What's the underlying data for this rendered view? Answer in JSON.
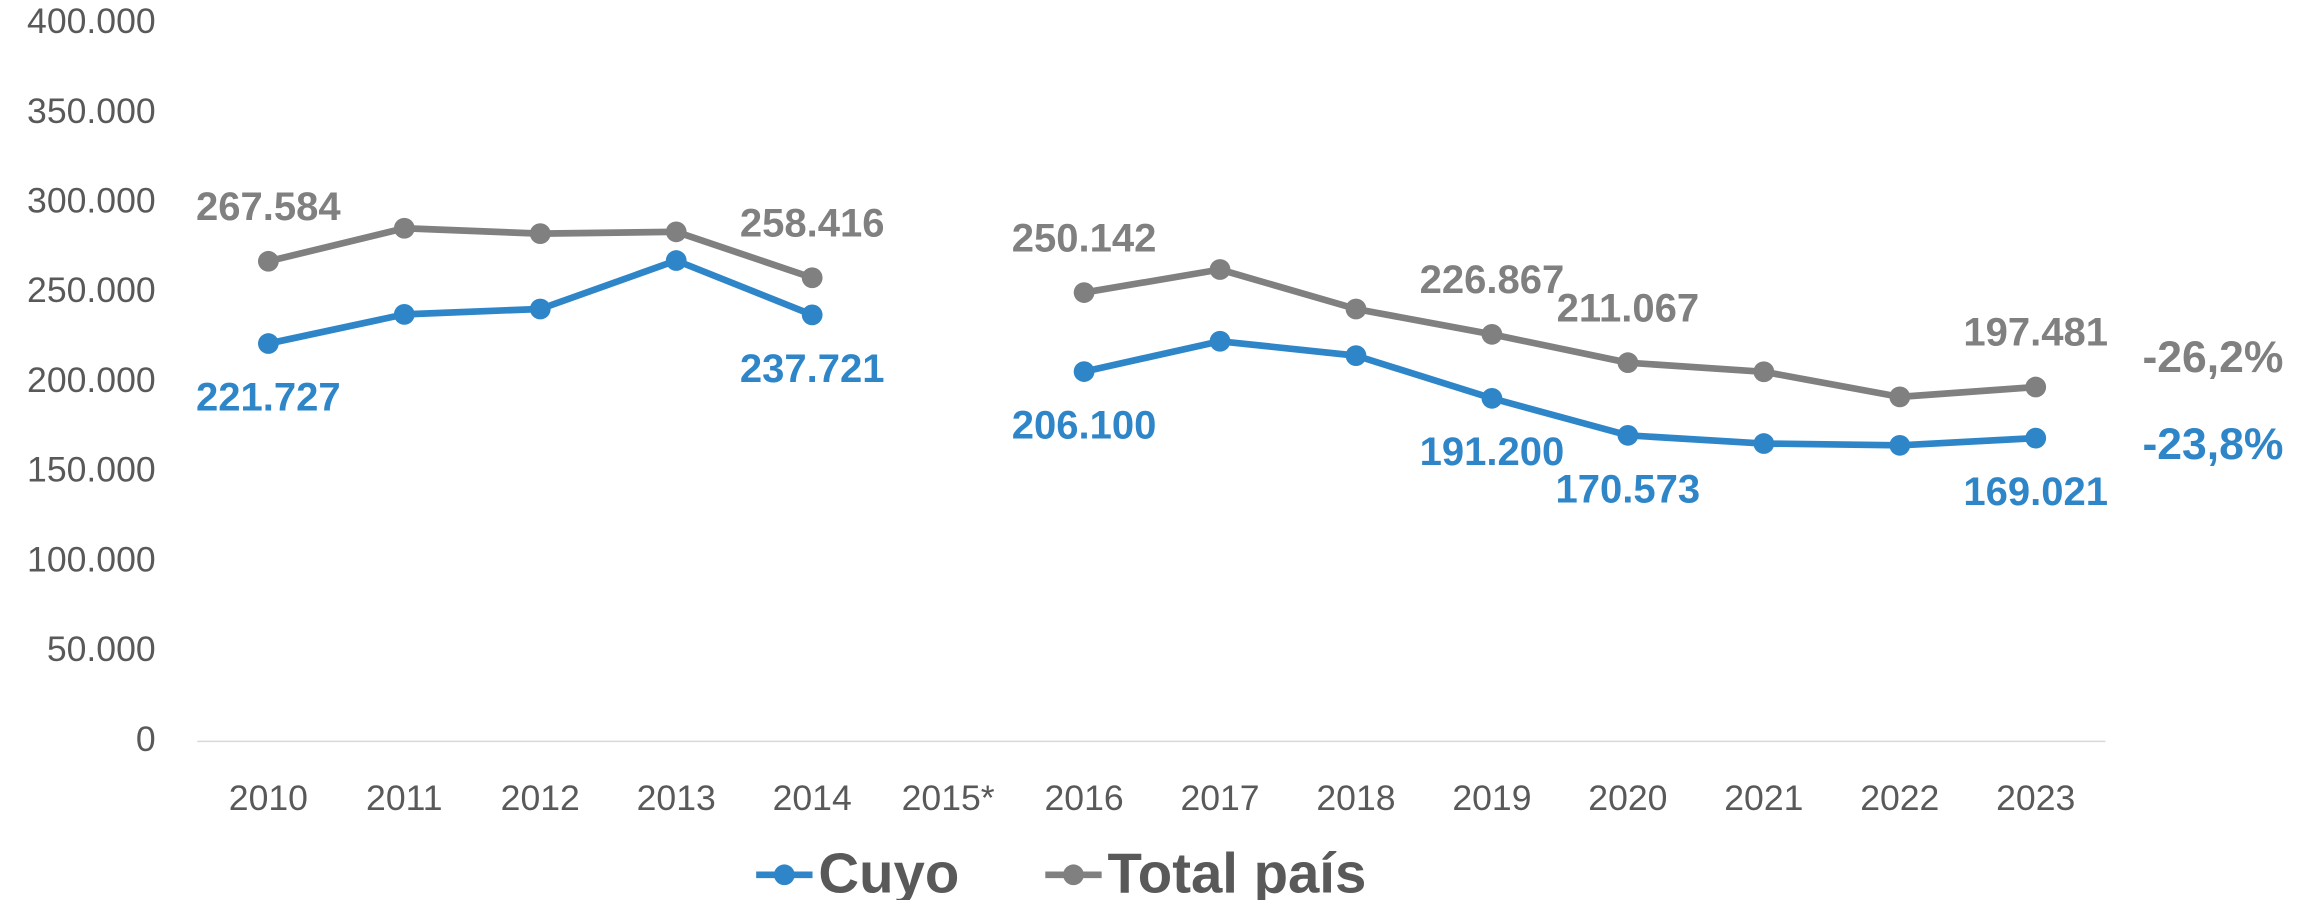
{
  "chart_data": {
    "type": "line",
    "categories": [
      "2010",
      "2011",
      "2012",
      "2013",
      "2014",
      "2015*",
      "2016",
      "2017",
      "2018",
      "2019",
      "2020",
      "2021",
      "2022",
      "2023"
    ],
    "ylim": [
      0,
      400000
    ],
    "yticks": [
      0,
      {
        "value": 50000,
        "label": "50.000"
      },
      {
        "value": 100000,
        "label": "100.000"
      },
      {
        "value": 150000,
        "label": "150.000"
      },
      {
        "value": 200000,
        "label": "200.000"
      },
      {
        "value": 250000,
        "label": "250.000"
      },
      {
        "value": 300000,
        "label": "300.000"
      },
      {
        "value": 350000,
        "label": "350.000"
      },
      {
        "value": 400000,
        "label": "400.000"
      }
    ],
    "grid": false,
    "legend": "bottom",
    "series": [
      {
        "name": "Cuyo",
        "color": "#2e86c8",
        "values": [
          221727,
          238000,
          241000,
          268000,
          237721,
          null,
          206100,
          223000,
          215000,
          191200,
          170573,
          166000,
          165000,
          169021
        ],
        "value_labels": [
          "221.727",
          null,
          null,
          null,
          "237.721",
          null,
          "206.100",
          null,
          null,
          "191.200",
          "170.573",
          null,
          null,
          "169.021"
        ],
        "change": "-23,8%"
      },
      {
        "name": "Total país",
        "color": "#808080",
        "values": [
          267584,
          286000,
          283000,
          284000,
          258416,
          null,
          250142,
          263000,
          241000,
          226867,
          211067,
          206000,
          192000,
          197481
        ],
        "value_labels": [
          "267.584",
          null,
          null,
          null,
          "258.416",
          null,
          "250.142",
          null,
          null,
          "226.867",
          "211.067",
          null,
          null,
          "197.481"
        ],
        "change": "-26,2%"
      }
    ]
  }
}
